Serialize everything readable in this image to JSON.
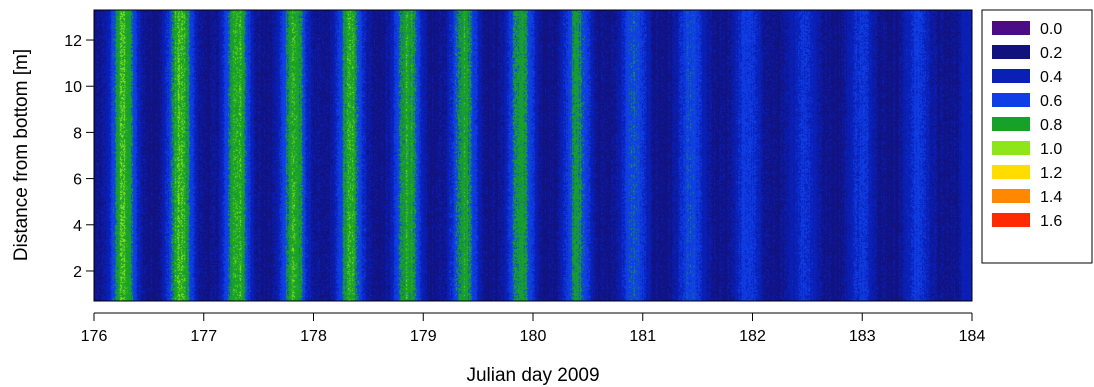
{
  "chart_data": {
    "type": "heatmap",
    "title": "",
    "xlabel": "Julian day 2009",
    "ylabel": "Distance from bottom [m]",
    "xlim": [
      176,
      184
    ],
    "ylim": [
      0.7,
      13.3
    ],
    "x_ticks": [
      "176",
      "177",
      "178",
      "179",
      "180",
      "181",
      "182",
      "183",
      "184"
    ],
    "y_ticks": [
      "2",
      "4",
      "6",
      "8",
      "10",
      "12"
    ],
    "legend": {
      "placement": "right",
      "levels": [
        {
          "label": "0.0",
          "color": "#4b0c86"
        },
        {
          "label": "0.2",
          "color": "#12127f"
        },
        {
          "label": "0.4",
          "color": "#0a1fb4"
        },
        {
          "label": "0.6",
          "color": "#0f3ee6"
        },
        {
          "label": "0.8",
          "color": "#18a129"
        },
        {
          "label": "1.0",
          "color": "#8ee61a"
        },
        {
          "label": "1.2",
          "color": "#ffdd00"
        },
        {
          "label": "1.4",
          "color": "#ff8800"
        },
        {
          "label": "1.6",
          "color": "#ff2a00"
        }
      ]
    },
    "pattern": {
      "description_of_values": "vertical bands alternating between low (~0.2-0.4) and high (~0.8-1.0) values with ~0.5 day period; peaks strong from day 176 to ~180.7, weakening afterwards to mostly 0.4-0.6",
      "x": [
        176.0,
        176.5,
        177.0,
        177.5,
        178.0,
        178.5,
        179.0,
        179.5,
        180.0,
        180.5,
        181.0,
        181.5,
        182.0,
        182.5,
        183.0,
        183.5,
        184.0
      ],
      "peak_value": [
        0.95,
        0.95,
        0.95,
        0.93,
        0.92,
        0.9,
        0.9,
        0.88,
        0.85,
        0.82,
        0.7,
        0.68,
        0.62,
        0.6,
        0.6,
        0.62,
        0.55
      ]
    }
  }
}
